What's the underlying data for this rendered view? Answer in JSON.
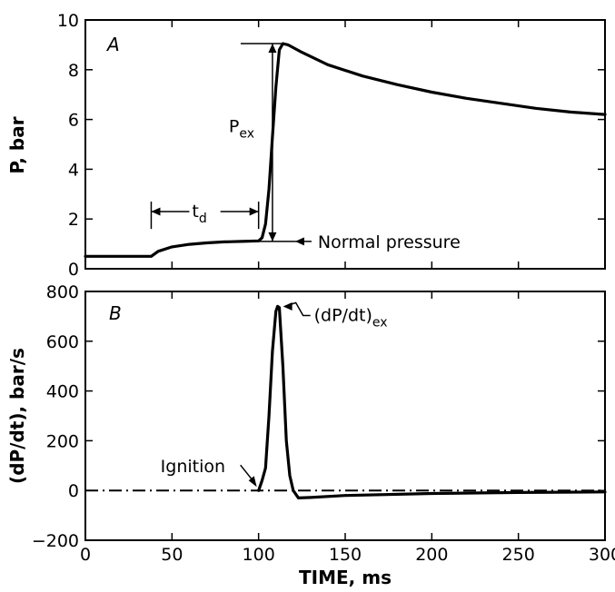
{
  "chart_data": [
    {
      "type": "line",
      "panel_label": "A",
      "title": "",
      "xlabel": "",
      "ylabel": "P, bar",
      "xlim": [
        0,
        300
      ],
      "ylim": [
        0,
        10
      ],
      "xticks": [
        0,
        50,
        100,
        150,
        200,
        250,
        300
      ],
      "yticks": [
        0,
        2,
        4,
        6,
        8,
        10
      ],
      "ytick_labels": [
        "0",
        "2",
        "4",
        "6",
        "8",
        "10"
      ],
      "grid": false,
      "series": [
        {
          "x": [
            0,
            38,
            42,
            50,
            60,
            70,
            80,
            90,
            100,
            102,
            104,
            106,
            108,
            110,
            112,
            114,
            117,
            125,
            140,
            160,
            180,
            200,
            220,
            240,
            260,
            280,
            300
          ],
          "y": [
            0.5,
            0.5,
            0.7,
            0.88,
            0.98,
            1.04,
            1.08,
            1.1,
            1.12,
            1.25,
            1.8,
            3.2,
            5.3,
            7.3,
            8.8,
            9.05,
            9.0,
            8.7,
            8.2,
            7.75,
            7.4,
            7.1,
            6.85,
            6.65,
            6.45,
            6.3,
            6.2
          ]
        }
      ],
      "annotations": {
        "td_label": "t",
        "td_sub": "d",
        "td_range": [
          38,
          100
        ],
        "pex_label": "P",
        "pex_sub": "ex",
        "pex_x": 108,
        "pex_range": [
          1.1,
          9.05
        ],
        "normal_pressure_label": "Normal pressure",
        "normal_pressure_value": 1.1
      }
    },
    {
      "type": "line",
      "panel_label": "B",
      "title": "",
      "xlabel": "TIME, ms",
      "ylabel": "(dP/dt), bar/s",
      "xlim": [
        0,
        300
      ],
      "ylim": [
        -200,
        800
      ],
      "xticks": [
        0,
        50,
        100,
        150,
        200,
        250,
        300
      ],
      "xtick_labels": [
        "0",
        "50",
        "100",
        "150",
        "200",
        "250",
        "300"
      ],
      "yticks": [
        -200,
        0,
        200,
        400,
        600,
        800
      ],
      "ytick_labels": [
        "−200",
        "0",
        "200",
        "400",
        "600",
        "800"
      ],
      "grid": false,
      "baseline_y": 0,
      "series": [
        {
          "x": [
            100,
            102,
            104,
            106,
            108,
            110,
            111,
            112,
            114,
            116,
            118,
            120,
            123,
            130,
            150,
            200,
            250,
            300
          ],
          "y": [
            0,
            40,
            90,
            300,
            560,
            720,
            740,
            735,
            500,
            200,
            60,
            0,
            -30,
            -28,
            -20,
            -12,
            -8,
            -6
          ]
        }
      ],
      "annotations": {
        "ignition_label": "Ignition",
        "ignition_x": 100,
        "peak_label": "(dP/dt)",
        "peak_sub": "ex",
        "peak_x": 111,
        "peak_y": 740
      }
    }
  ]
}
